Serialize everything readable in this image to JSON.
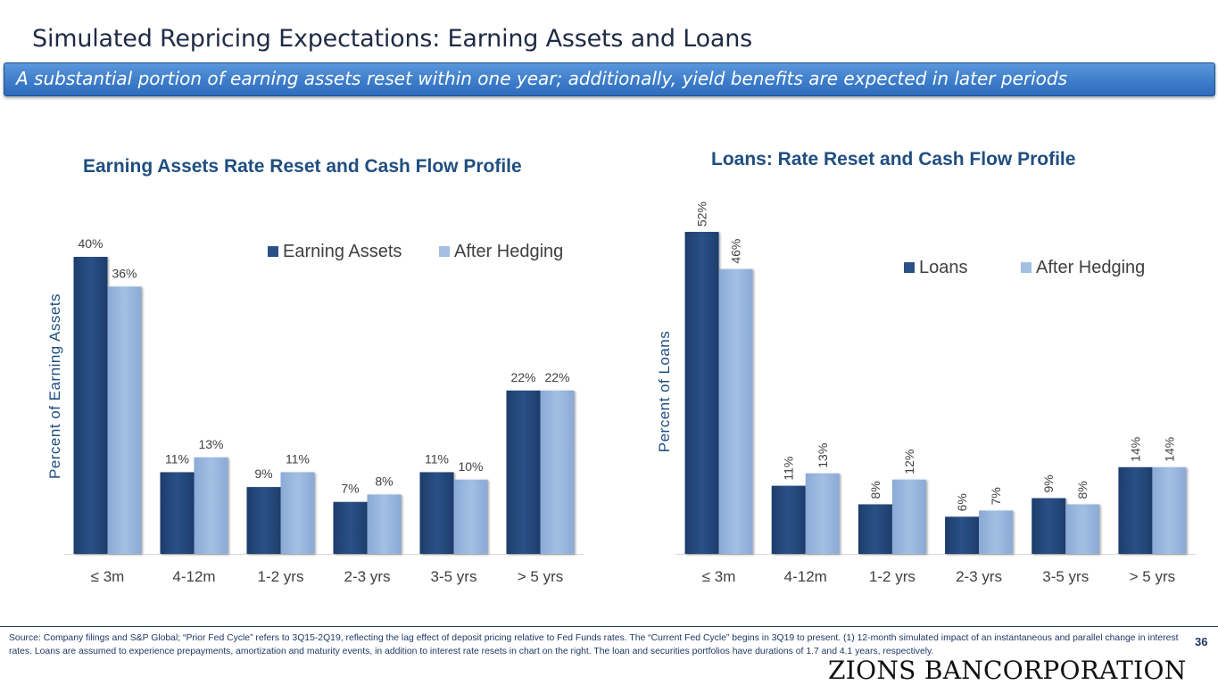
{
  "page": {
    "title": "Simulated Repricing Expectations: Earning Assets and Loans",
    "banner": "A substantial portion of earning assets reset within one year; additionally, yield benefits are expected in later periods",
    "source_note": "Source: Company filings and S&P Global; “Prior Fed Cycle” refers to 3Q15-2Q19, reflecting the lag effect of deposit pricing relative to Fed Funds rates. The “Current Fed Cycle” begins in 3Q19 to present. (1) 12-month simulated impact of an instantaneous and parallel change in interest rates. Loans are assumed to experience prepayments, amortization and maturity events, in addition to interest rate resets in chart on the right. The loan and securities portfolios have durations of 1.7 and 4.1 years, respectively.",
    "page_number": "36",
    "logo_text": "ZIONS BANCORPORATION"
  },
  "colors": {
    "primary_bar": "#2a5187",
    "hedged_bar": "#a3bfe3",
    "title_blue": "#1f4e80",
    "banner_blue": "#3f7fcc"
  },
  "chart_data": [
    {
      "type": "bar",
      "title": "Earning Assets Rate Reset and Cash Flow Profile",
      "xlabel": "",
      "ylabel": "Percent of Earning Assets",
      "categories": [
        "≤ 3m",
        "4-12m",
        "1-2 yrs",
        "2-3 yrs",
        "3-5 yrs",
        "> 5 yrs"
      ],
      "series": [
        {
          "name": "Earning Assets",
          "values": [
            40,
            11,
            9,
            7,
            11,
            22
          ],
          "labels": [
            "40%",
            "11%",
            "9%",
            "7%",
            "11%",
            "22%"
          ]
        },
        {
          "name": "After Hedging",
          "values": [
            36,
            13,
            11,
            8,
            10,
            22
          ],
          "labels": [
            "36%",
            "13%",
            "11%",
            "8%",
            "10%",
            "22%"
          ]
        }
      ],
      "ylim": [
        0,
        40
      ],
      "grid": false,
      "legend": "top-right",
      "label_orientation": "horizontal"
    },
    {
      "type": "bar",
      "title": "Loans: Rate Reset and Cash Flow Profile",
      "xlabel": "",
      "ylabel": "Percent of Loans",
      "categories": [
        "≤ 3m",
        "4-12m",
        "1-2 yrs",
        "2-3 yrs",
        "3-5 yrs",
        "> 5 yrs"
      ],
      "series": [
        {
          "name": "Loans",
          "values": [
            52,
            11,
            8,
            6,
            9,
            14
          ],
          "labels": [
            "52%",
            "11%",
            "8%",
            "6%",
            "9%",
            "14%"
          ]
        },
        {
          "name": "After Hedging",
          "values": [
            46,
            13,
            12,
            7,
            8,
            14
          ],
          "labels": [
            "46%",
            "13%",
            "12%",
            "7%",
            "8%",
            "14%"
          ]
        }
      ],
      "ylim": [
        0,
        52
      ],
      "grid": false,
      "legend": "top-right",
      "label_orientation": "vertical"
    }
  ]
}
